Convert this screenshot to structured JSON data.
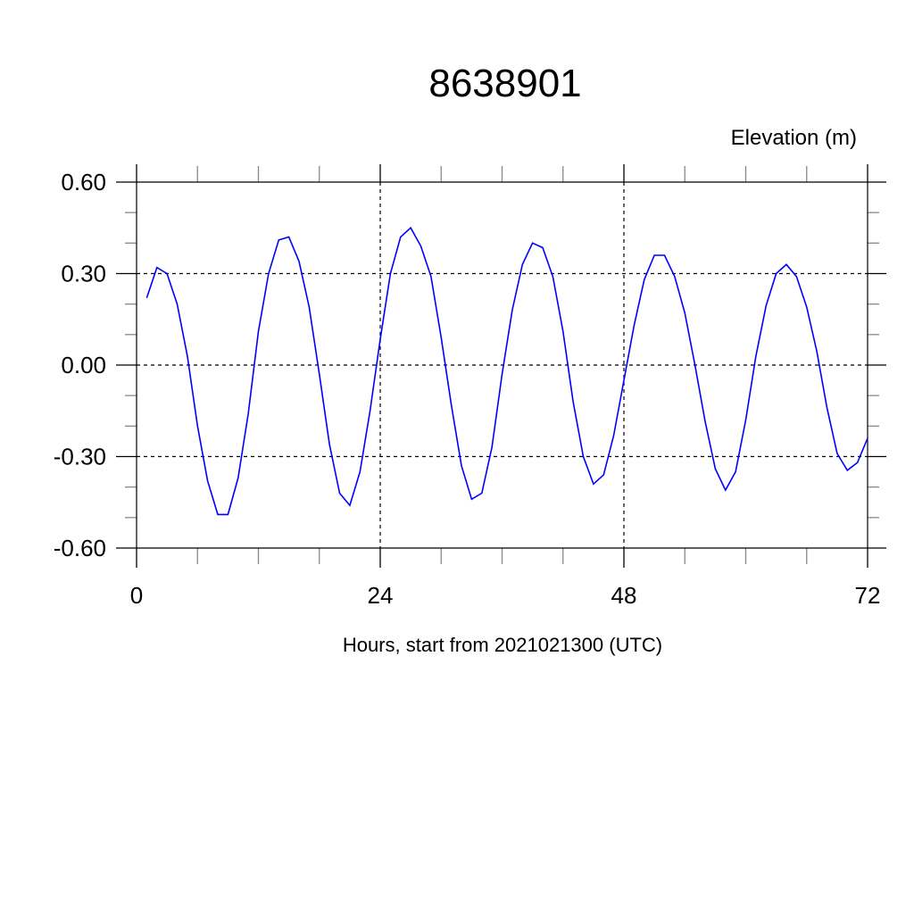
{
  "chart_data": {
    "type": "line",
    "title": "8638901",
    "ylabel": "Elevation (m)",
    "xlabel": "Hours, start from 2021021300 (UTC)",
    "xlim": [
      0,
      72
    ],
    "ylim": [
      -0.6,
      0.6
    ],
    "xticks": [
      0,
      24,
      48,
      72
    ],
    "xtick_labels": [
      "0",
      "24",
      "48",
      "72"
    ],
    "yticks": [
      0.6,
      0.3,
      0.0,
      -0.3,
      -0.6
    ],
    "ytick_labels": [
      "0.60",
      "0.30",
      "0.00",
      "-0.30",
      "-0.60"
    ],
    "grid": true,
    "series": [
      {
        "color": "#0000ff",
        "x": [
          1,
          2,
          3,
          4,
          5,
          6,
          7,
          8,
          9,
          10,
          11,
          12,
          13,
          14,
          15,
          16,
          17,
          18,
          19,
          20,
          21,
          22,
          23,
          24,
          25,
          26,
          27,
          28,
          29,
          30,
          31,
          32,
          33,
          34,
          35,
          36,
          37,
          38,
          39,
          40,
          41,
          42,
          43,
          44,
          45,
          46,
          47,
          48,
          49,
          50,
          51,
          52,
          53,
          54,
          55,
          56,
          57,
          58,
          59,
          60,
          61,
          62,
          63,
          64,
          65,
          66,
          67,
          68,
          69,
          70,
          71,
          72
        ],
        "y": [
          0.22,
          0.32,
          0.3,
          0.2,
          0.03,
          -0.2,
          -0.38,
          -0.49,
          -0.49,
          -0.37,
          -0.16,
          0.11,
          0.3,
          0.41,
          0.42,
          0.34,
          0.19,
          -0.03,
          -0.26,
          -0.42,
          -0.46,
          -0.35,
          -0.15,
          0.085,
          0.3,
          0.42,
          0.45,
          0.39,
          0.29,
          0.09,
          -0.13,
          -0.33,
          -0.44,
          -0.42,
          -0.27,
          -0.03,
          0.18,
          0.33,
          0.4,
          0.385,
          0.29,
          0.11,
          -0.12,
          -0.3,
          -0.39,
          -0.36,
          -0.23,
          -0.05,
          0.13,
          0.28,
          0.36,
          0.36,
          0.29,
          0.17,
          0.0,
          -0.185,
          -0.34,
          -0.41,
          -0.35,
          -0.18,
          0.03,
          0.195,
          0.3,
          0.33,
          0.29,
          0.19,
          0.045,
          -0.14,
          -0.29,
          -0.345,
          -0.32,
          -0.24
        ]
      }
    ]
  }
}
